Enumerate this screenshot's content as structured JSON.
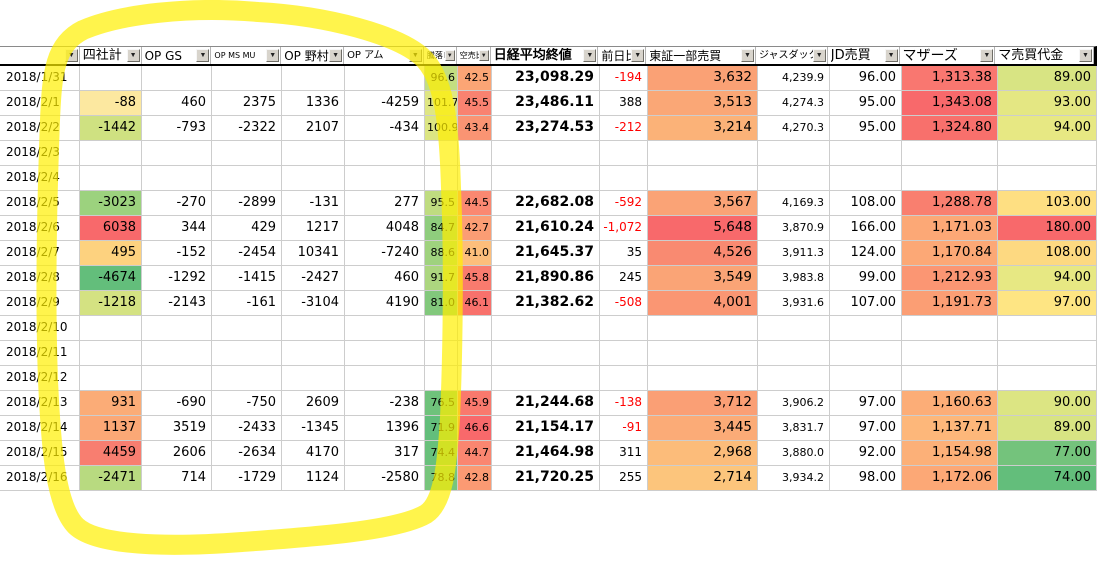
{
  "table": {
    "headers": [
      {
        "label": ""
      },
      {
        "label": "四社計"
      },
      {
        "label": "OP GS"
      },
      {
        "label": "OP MS MU"
      },
      {
        "label": "OP 野村"
      },
      {
        "label": "OP アム"
      },
      {
        "label": "騰落レシ"
      },
      {
        "label": "空売比"
      },
      {
        "label": "日経平均終値"
      },
      {
        "label": "前日比"
      },
      {
        "label": "東証一部売買"
      },
      {
        "label": "ジャスダック"
      },
      {
        "label": "JD売買"
      },
      {
        "label": "マザーズ"
      },
      {
        "label": "マ売買代金"
      }
    ],
    "rows": [
      {
        "date": "2018/1/31",
        "cells": [
          {},
          {},
          {},
          {},
          {},
          {
            "v": "96.6",
            "bg": "#C3DE81"
          },
          {
            "v": "42.5",
            "bg": "#FBA575"
          },
          {
            "v": "23,098.29"
          },
          {
            "v": "-194",
            "neg": true
          },
          {
            "v": "3,632",
            "bg": "#FAA175"
          },
          {
            "v": "4,239.9"
          },
          {
            "v": "96.00"
          },
          {
            "v": "1,313.38",
            "bg": "#F97770"
          },
          {
            "v": "89.00",
            "bg": "#D8E483"
          }
        ]
      },
      {
        "date": "2018/2/1",
        "cells": [
          {
            "v": "-88",
            "bg": "#FCE8A0"
          },
          {
            "v": "460"
          },
          {
            "v": "2375"
          },
          {
            "v": "1336"
          },
          {
            "v": "-4259"
          },
          {
            "v": "101.7",
            "bg": "#DFE683"
          },
          {
            "v": "45.5",
            "bg": "#F98270"
          },
          {
            "v": "23,486.11"
          },
          {
            "v": "388"
          },
          {
            "v": "3,513",
            "bg": "#FAA776"
          },
          {
            "v": "4,274.3"
          },
          {
            "v": "95.00"
          },
          {
            "v": "1,343.08",
            "bg": "#F8696B"
          },
          {
            "v": "93.00",
            "bg": "#E4E783"
          }
        ]
      },
      {
        "date": "2018/2/2",
        "cells": [
          {
            "v": "-1442",
            "bg": "#CFE181"
          },
          {
            "v": "-793"
          },
          {
            "v": "-2322"
          },
          {
            "v": "2107"
          },
          {
            "v": "-434"
          },
          {
            "v": "100.9",
            "bg": "#DCE583"
          },
          {
            "v": "43.4",
            "bg": "#FA9473"
          },
          {
            "v": "23,274.53"
          },
          {
            "v": "-212",
            "neg": true
          },
          {
            "v": "3,214",
            "bg": "#FBB278"
          },
          {
            "v": "4,270.3"
          },
          {
            "v": "95.00"
          },
          {
            "v": "1,324.80",
            "bg": "#F8706C"
          },
          {
            "v": "94.00",
            "bg": "#E7E883"
          }
        ]
      },
      {
        "date": "2018/2/3",
        "cells": [
          {},
          {},
          {},
          {},
          {},
          {},
          {},
          {},
          {},
          {},
          {},
          {},
          {},
          {}
        ]
      },
      {
        "date": "2018/2/4",
        "cells": [
          {},
          {},
          {},
          {},
          {},
          {},
          {},
          {},
          {},
          {},
          {},
          {},
          {},
          {}
        ]
      },
      {
        "date": "2018/2/5",
        "cells": [
          {
            "v": "-3023",
            "bg": "#9CD27E"
          },
          {
            "v": "-270"
          },
          {
            "v": "-2899"
          },
          {
            "v": "-131"
          },
          {
            "v": "277"
          },
          {
            "v": "95.5",
            "bg": "#BFDC80"
          },
          {
            "v": "44.5",
            "bg": "#FA8871"
          },
          {
            "v": "22,682.08"
          },
          {
            "v": "-592",
            "neg": true
          },
          {
            "v": "3,567",
            "bg": "#FAA376"
          },
          {
            "v": "4,169.3"
          },
          {
            "v": "108.00"
          },
          {
            "v": "1,288.78",
            "bg": "#F97F6F"
          },
          {
            "v": "103.00",
            "bg": "#FEDF82"
          }
        ]
      },
      {
        "date": "2018/2/6",
        "cells": [
          {
            "v": "6038",
            "bg": "#F8696B"
          },
          {
            "v": "344"
          },
          {
            "v": "429"
          },
          {
            "v": "1217"
          },
          {
            "v": "4048"
          },
          {
            "v": "84.7",
            "bg": "#8FCD7D"
          },
          {
            "v": "42.7",
            "bg": "#FB9D74"
          },
          {
            "v": "21,610.24"
          },
          {
            "v": "-1,072",
            "neg": true
          },
          {
            "v": "5,648",
            "bg": "#F8696B"
          },
          {
            "v": "3,870.9"
          },
          {
            "v": "166.00"
          },
          {
            "v": "1,171.03",
            "bg": "#FCA876"
          },
          {
            "v": "180.00",
            "bg": "#F8696B"
          }
        ]
      },
      {
        "date": "2018/2/7",
        "cells": [
          {
            "v": "495",
            "bg": "#FDD27F"
          },
          {
            "v": "-152"
          },
          {
            "v": "-2454"
          },
          {
            "v": "10341"
          },
          {
            "v": "-7240"
          },
          {
            "v": "88.6",
            "bg": "#9FD27E"
          },
          {
            "v": "41.0",
            "bg": "#FDBE7B"
          },
          {
            "v": "21,645.37"
          },
          {
            "v": "35"
          },
          {
            "v": "4,526",
            "bg": "#F98A71"
          },
          {
            "v": "3,911.3"
          },
          {
            "v": "124.00"
          },
          {
            "v": "1,170.84",
            "bg": "#FCA876"
          },
          {
            "v": "108.00",
            "bg": "#FDD981"
          }
        ]
      },
      {
        "date": "2018/2/8",
        "cells": [
          {
            "v": "-4674",
            "bg": "#63BE7B"
          },
          {
            "v": "-1292"
          },
          {
            "v": "-1415"
          },
          {
            "v": "-2427"
          },
          {
            "v": "460"
          },
          {
            "v": "91.7",
            "bg": "#ACD67F"
          },
          {
            "v": "45.8",
            "bg": "#F97B6E"
          },
          {
            "v": "21,890.86"
          },
          {
            "v": "245"
          },
          {
            "v": "3,549",
            "bg": "#FAA476"
          },
          {
            "v": "3,983.8"
          },
          {
            "v": "99.00"
          },
          {
            "v": "1,212.93",
            "bg": "#FB9673"
          },
          {
            "v": "94.00",
            "bg": "#E7E883"
          }
        ]
      },
      {
        "date": "2018/2/9",
        "cells": [
          {
            "v": "-1218",
            "bg": "#D4E282"
          },
          {
            "v": "-2143"
          },
          {
            "v": "-161"
          },
          {
            "v": "-3104"
          },
          {
            "v": "4190"
          },
          {
            "v": "81.0",
            "bg": "#82C87C"
          },
          {
            "v": "46.1",
            "bg": "#F8716C"
          },
          {
            "v": "21,382.62"
          },
          {
            "v": "-508",
            "neg": true
          },
          {
            "v": "4,001",
            "bg": "#FA9673"
          },
          {
            "v": "3,931.6"
          },
          {
            "v": "107.00"
          },
          {
            "v": "1,191.73",
            "bg": "#FB9E74"
          },
          {
            "v": "97.00",
            "bg": "#FEE583"
          }
        ]
      },
      {
        "date": "2018/2/10",
        "cells": [
          {},
          {},
          {},
          {},
          {},
          {},
          {},
          {},
          {},
          {},
          {},
          {},
          {},
          {}
        ]
      },
      {
        "date": "2018/2/11",
        "cells": [
          {},
          {},
          {},
          {},
          {},
          {},
          {},
          {},
          {},
          {},
          {},
          {},
          {},
          {}
        ]
      },
      {
        "date": "2018/2/12",
        "cells": [
          {},
          {},
          {},
          {},
          {},
          {},
          {},
          {},
          {},
          {},
          {},
          {},
          {},
          {}
        ]
      },
      {
        "date": "2018/2/13",
        "cells": [
          {
            "v": "931",
            "bg": "#FBAC77"
          },
          {
            "v": "-690"
          },
          {
            "v": "-750"
          },
          {
            "v": "2609"
          },
          {
            "v": "-238"
          },
          {
            "v": "76.5",
            "bg": "#6FC27B"
          },
          {
            "v": "45.9",
            "bg": "#F9796D"
          },
          {
            "v": "21,244.68"
          },
          {
            "v": "-138",
            "neg": true
          },
          {
            "v": "3,712",
            "bg": "#FA9F75"
          },
          {
            "v": "3,906.2"
          },
          {
            "v": "97.00"
          },
          {
            "v": "1,160.63",
            "bg": "#FCAD77"
          },
          {
            "v": "90.00",
            "bg": "#DCE583"
          }
        ]
      },
      {
        "date": "2018/2/14",
        "cells": [
          {
            "v": "1137",
            "bg": "#FBA876"
          },
          {
            "v": "3519"
          },
          {
            "v": "-2433"
          },
          {
            "v": "-1345"
          },
          {
            "v": "1396"
          },
          {
            "v": "71.9",
            "bg": "#63BE7B"
          },
          {
            "v": "46.6",
            "bg": "#F8696B"
          },
          {
            "v": "21,154.17"
          },
          {
            "v": "-91",
            "neg": true
          },
          {
            "v": "3,445",
            "bg": "#FBAB77"
          },
          {
            "v": "3,831.7"
          },
          {
            "v": "97.00"
          },
          {
            "v": "1,137.71",
            "bg": "#FDB77A"
          },
          {
            "v": "89.00",
            "bg": "#D8E483"
          }
        ]
      },
      {
        "date": "2018/2/15",
        "cells": [
          {
            "v": "4459",
            "bg": "#F87E70"
          },
          {
            "v": "2606"
          },
          {
            "v": "-2634"
          },
          {
            "v": "4170"
          },
          {
            "v": "317"
          },
          {
            "v": "74.4",
            "bg": "#69C07B"
          },
          {
            "v": "44.7",
            "bg": "#FA8670"
          },
          {
            "v": "21,464.98"
          },
          {
            "v": "311"
          },
          {
            "v": "2,968",
            "bg": "#FCBC7A"
          },
          {
            "v": "3,880.0"
          },
          {
            "v": "92.00"
          },
          {
            "v": "1,154.98",
            "bg": "#FCB078"
          },
          {
            "v": "77.00",
            "bg": "#74C37C"
          }
        ]
      },
      {
        "date": "2018/2/16",
        "cells": [
          {
            "v": "-2471",
            "bg": "#B8DA80"
          },
          {
            "v": "714"
          },
          {
            "v": "-1729"
          },
          {
            "v": "1124"
          },
          {
            "v": "-2580"
          },
          {
            "v": "78.8",
            "bg": "#77C57C"
          },
          {
            "v": "42.8",
            "bg": "#FB9A73"
          },
          {
            "v": "21,720.25"
          },
          {
            "v": "255"
          },
          {
            "v": "2,714",
            "bg": "#FCC57C"
          },
          {
            "v": "3,934.2"
          },
          {
            "v": "98.00"
          },
          {
            "v": "1,172.06",
            "bg": "#FCA876"
          },
          {
            "v": "74.00",
            "bg": "#63BE7B"
          }
        ]
      }
    ]
  },
  "colors": {
    "negative_text": "#FF0000",
    "gridline": "#CDCDCD"
  },
  "annotation": {
    "type": "hand-drawn highlighter loop",
    "color": "#FFF000"
  },
  "filter_arrow": "▼"
}
